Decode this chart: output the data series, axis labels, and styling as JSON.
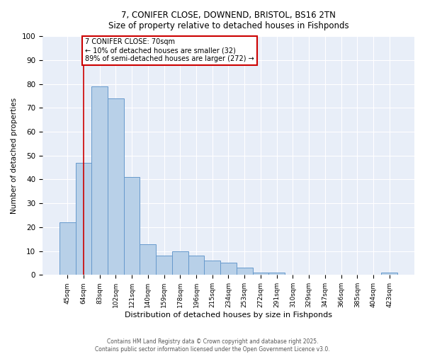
{
  "title_line1": "7, CONIFER CLOSE, DOWNEND, BRISTOL, BS16 2TN",
  "title_line2": "Size of property relative to detached houses in Fishponds",
  "xlabel": "Distribution of detached houses by size in Fishponds",
  "ylabel": "Number of detached properties",
  "categories": [
    "45sqm",
    "64sqm",
    "83sqm",
    "102sqm",
    "121sqm",
    "140sqm",
    "159sqm",
    "178sqm",
    "196sqm",
    "215sqm",
    "234sqm",
    "253sqm",
    "272sqm",
    "291sqm",
    "310sqm",
    "329sqm",
    "347sqm",
    "366sqm",
    "385sqm",
    "404sqm",
    "423sqm"
  ],
  "values": [
    22,
    47,
    79,
    74,
    41,
    13,
    8,
    10,
    8,
    6,
    5,
    3,
    1,
    1,
    0,
    0,
    0,
    0,
    0,
    0,
    1
  ],
  "bar_color": "#b8d0e8",
  "bar_edge_color": "#6699cc",
  "background_color": "#e8eef8",
  "red_line_x": 1.0,
  "annotation_text": "7 CONIFER CLOSE: 70sqm\n← 10% of detached houses are smaller (32)\n89% of semi-detached houses are larger (272) →",
  "annotation_box_color": "#cc0000",
  "footer_line1": "Contains HM Land Registry data © Crown copyright and database right 2025.",
  "footer_line2": "Contains public sector information licensed under the Open Government Licence v3.0.",
  "ylim": [
    0,
    100
  ],
  "yticks": [
    0,
    10,
    20,
    30,
    40,
    50,
    60,
    70,
    80,
    90,
    100
  ],
  "figsize": [
    6.0,
    5.0
  ],
  "dpi": 100
}
